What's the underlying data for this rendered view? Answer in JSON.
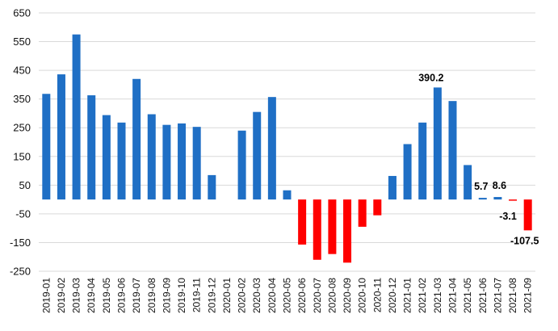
{
  "chart_data": {
    "type": "bar",
    "title": "",
    "xlabel": "",
    "ylabel": "",
    "ylim": [
      -250,
      650
    ],
    "yticks": [
      650,
      550,
      450,
      350,
      250,
      150,
      50,
      -50,
      -150,
      -250
    ],
    "grid": true,
    "legend": "none",
    "colors": {
      "positive": "#1f6fc5",
      "negative": "#ff0000",
      "grid": "#d9d9d9"
    },
    "categories": [
      "2019-01",
      "2019-02",
      "2019-03",
      "2019-04",
      "2019-05",
      "2019-06",
      "2019-07",
      "2019-08",
      "2019-09",
      "2019-10",
      "2019-11",
      "2019-12",
      "2020-01",
      "2020-02",
      "2020-03",
      "2020-04",
      "2020-05",
      "2020-06",
      "2020-07",
      "2020-08",
      "2020-09",
      "2020-10",
      "2020-11",
      "2020-12",
      "2021-01",
      "2021-02",
      "2021-03",
      "2021-04",
      "2021-05",
      "2021-06",
      "2021-07",
      "2021-08",
      "2021-09"
    ],
    "values": [
      368,
      436,
      575,
      363,
      294,
      268,
      420,
      297,
      260,
      265,
      253,
      85,
      null,
      240,
      305,
      357,
      32,
      -157,
      -210,
      -190,
      -220,
      -95,
      -55,
      82,
      193,
      268,
      390.2,
      343,
      120,
      5.7,
      8.6,
      -3.1,
      -107.5
    ],
    "data_labels": [
      {
        "category": "2021-03",
        "text": "390.2"
      },
      {
        "category": "2021-06",
        "text": "5.7"
      },
      {
        "category": "2021-07",
        "text": "8.6"
      },
      {
        "category": "2021-08",
        "text": "-3.1"
      },
      {
        "category": "2021-09",
        "text": "-107.5"
      }
    ]
  }
}
